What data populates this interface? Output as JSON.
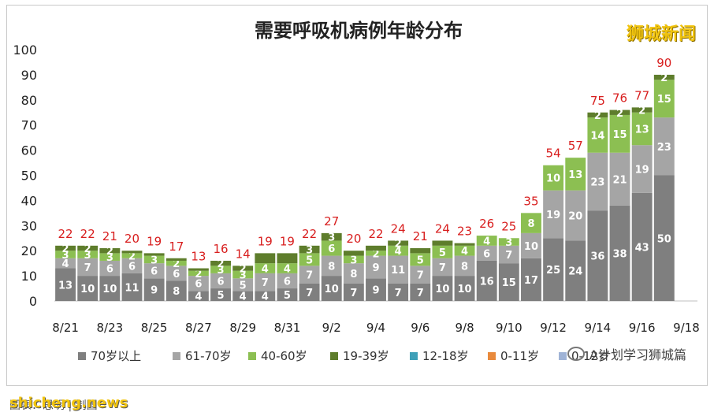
{
  "chart_data": {
    "type": "bar",
    "stacked": true,
    "title": "需要呼吸机病例年龄分布",
    "xlabel": "",
    "ylabel": "",
    "ylim": [
      0,
      100
    ],
    "yticks": [
      0,
      10,
      20,
      30,
      40,
      50,
      60,
      70,
      80,
      90,
      100
    ],
    "categories": [
      "8/21",
      "8/22",
      "8/23",
      "8/24",
      "8/25",
      "8/26",
      "8/27",
      "8/28",
      "8/29",
      "8/30",
      "8/31",
      "9/1",
      "9/2",
      "9/3",
      "9/4",
      "9/5",
      "9/6",
      "9/7",
      "9/8",
      "9/9",
      "9/10",
      "9/11",
      "9/12",
      "9/13",
      "9/14",
      "9/15",
      "9/16",
      "9/17",
      "9/18"
    ],
    "xtick_labels": [
      "8/21",
      "8/23",
      "8/25",
      "8/27",
      "8/29",
      "8/31",
      "9/2",
      "9/4",
      "9/6",
      "9/8",
      "9/10",
      "9/12",
      "9/14",
      "9/16",
      "9/18"
    ],
    "totals": [
      22,
      22,
      21,
      20,
      19,
      17,
      13,
      16,
      14,
      19,
      19,
      22,
      27,
      20,
      22,
      24,
      21,
      24,
      23,
      26,
      25,
      35,
      54,
      57,
      75,
      76,
      77,
      90,
      null
    ],
    "series": [
      {
        "name": "70岁以上",
        "color": "#7f7f7f",
        "values": [
          13,
          10,
          10,
          11,
          9,
          8,
          4,
          5,
          4,
          4,
          5,
          7,
          10,
          7,
          9,
          7,
          7,
          10,
          10,
          16,
          15,
          17,
          25,
          24,
          36,
          38,
          43,
          50,
          null
        ],
        "labels": [
          "13",
          "10",
          "10",
          "11",
          "9",
          "8",
          "4",
          "5",
          "4",
          "4",
          "5",
          "7",
          "10",
          "7",
          "9",
          "7",
          "7",
          "10",
          "10",
          "16",
          "15",
          "17",
          "25",
          "24",
          "36",
          "38",
          "43",
          "50",
          ""
        ]
      },
      {
        "name": "61-70岁",
        "color": "#a5a5a5",
        "values": [
          4,
          7,
          6,
          6,
          6,
          6,
          6,
          6,
          5,
          7,
          6,
          7,
          8,
          8,
          9,
          11,
          7,
          7,
          8,
          6,
          7,
          10,
          19,
          20,
          23,
          21,
          19,
          23,
          null
        ],
        "labels": [
          "4",
          "7",
          "6",
          "6",
          "6",
          "6",
          "6",
          "6",
          "5",
          "7",
          "6",
          "7",
          "8",
          "8",
          "9",
          "11",
          "7",
          "7",
          "8",
          "6",
          "7",
          "10",
          "19",
          "20",
          "23",
          "21",
          "19",
          "23",
          ""
        ]
      },
      {
        "name": "40-60岁",
        "color": "#8cbf52",
        "values": [
          3,
          3,
          3,
          2,
          3,
          2,
          2,
          3,
          3,
          4,
          4,
          5,
          6,
          3,
          2,
          4,
          5,
          5,
          4,
          4,
          3,
          8,
          10,
          13,
          14,
          15,
          13,
          15,
          null
        ],
        "labels": [
          "3",
          "3",
          "3",
          "2",
          "3",
          "2",
          "2",
          "3",
          "3",
          "4",
          "4",
          "5",
          "6",
          "3",
          "2",
          "4",
          "5",
          "5",
          "4",
          "4",
          "3",
          "8",
          "10",
          "13",
          "14",
          "15",
          "13",
          "15",
          ""
        ]
      },
      {
        "name": "19-39岁",
        "color": "#5e7d2c",
        "values": [
          2,
          2,
          2,
          1,
          1,
          1,
          1,
          2,
          2,
          4,
          4,
          3,
          3,
          2,
          2,
          2,
          2,
          2,
          1,
          0,
          0,
          0,
          0,
          0,
          2,
          2,
          2,
          2,
          null
        ],
        "labels": [
          "2",
          "2",
          "2",
          "",
          "",
          "",
          "",
          "2",
          "2",
          "",
          "",
          "3",
          "3",
          "",
          "",
          "2",
          "",
          "",
          "",
          "",
          "",
          "",
          "",
          "",
          "2",
          "2",
          "2",
          "2",
          ""
        ]
      },
      {
        "name": "12-18岁",
        "color": "#3ea0b8",
        "values": [
          0,
          0,
          0,
          0,
          0,
          0,
          0,
          0,
          0,
          0,
          0,
          0,
          0,
          0,
          0,
          0,
          0,
          0,
          0,
          0,
          0,
          0,
          0,
          0,
          0,
          0,
          0,
          0,
          null
        ],
        "labels": []
      },
      {
        "name": "0-11岁",
        "color": "#e98a3c",
        "values": [
          0,
          0,
          0,
          0,
          0,
          0,
          0,
          0,
          0,
          0,
          0,
          0,
          0,
          0,
          0,
          0,
          0,
          0,
          0,
          0,
          0,
          0,
          0,
          0,
          0,
          0,
          0,
          0,
          null
        ],
        "labels": []
      },
      {
        "name": "0-12岁",
        "color": "#9fb3d6",
        "values": [
          0,
          0,
          0,
          0,
          0,
          0,
          0,
          0,
          0,
          0,
          0,
          0,
          0,
          0,
          0,
          0,
          0,
          0,
          0,
          0,
          0,
          0,
          0,
          0,
          0,
          0,
          0,
          0,
          null
        ],
        "labels": []
      }
    ],
    "legend_placement": "bottom",
    "grid": false
  },
  "brand": "狮城新闻",
  "wechat_label": "A计划学习狮城篇",
  "watermark": "shicheng.news",
  "source_note": "图表：思明 | 制图"
}
